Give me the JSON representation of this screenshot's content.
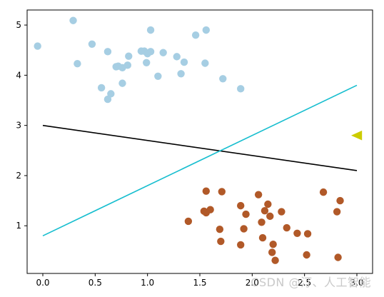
{
  "chart_data": {
    "type": "scatter",
    "xlim": [
      -0.15,
      3.15
    ],
    "ylim": [
      0.05,
      5.3
    ],
    "xticks": [
      "0.0",
      "0.5",
      "1.0",
      "1.5",
      "2.0",
      "2.5",
      "3.0"
    ],
    "yticks": [
      "1",
      "2",
      "3",
      "4",
      "5"
    ],
    "grid": false,
    "series": [
      {
        "kind": "points",
        "color": "#a6cee3",
        "points": [
          [
            -0.05,
            4.58
          ],
          [
            0.29,
            5.09
          ],
          [
            0.33,
            4.23
          ],
          [
            0.47,
            4.62
          ],
          [
            0.56,
            3.75
          ],
          [
            0.62,
            4.47
          ],
          [
            0.62,
            3.52
          ],
          [
            0.65,
            3.63
          ],
          [
            0.7,
            4.17
          ],
          [
            0.72,
            4.18
          ],
          [
            0.76,
            4.15
          ],
          [
            0.76,
            3.84
          ],
          [
            0.81,
            4.2
          ],
          [
            0.82,
            4.38
          ],
          [
            0.94,
            4.48
          ],
          [
            0.97,
            4.48
          ],
          [
            0.99,
            4.25
          ],
          [
            1.0,
            4.43
          ],
          [
            1.03,
            4.47
          ],
          [
            1.03,
            4.9
          ],
          [
            1.1,
            3.98
          ],
          [
            1.15,
            4.45
          ],
          [
            1.28,
            4.37
          ],
          [
            1.32,
            4.03
          ],
          [
            1.35,
            4.26
          ],
          [
            1.46,
            4.8
          ],
          [
            1.55,
            4.24
          ],
          [
            1.56,
            4.9
          ],
          [
            1.72,
            3.93
          ],
          [
            1.89,
            3.73
          ]
        ]
      },
      {
        "kind": "points",
        "color": "#b15928",
        "points": [
          [
            1.39,
            1.09
          ],
          [
            1.54,
            1.29
          ],
          [
            1.56,
            1.69
          ],
          [
            1.56,
            1.26
          ],
          [
            1.6,
            1.32
          ],
          [
            1.69,
            0.93
          ],
          [
            1.7,
            0.69
          ],
          [
            1.71,
            1.68
          ],
          [
            1.89,
            1.4
          ],
          [
            1.89,
            0.62
          ],
          [
            1.92,
            0.94
          ],
          [
            1.94,
            1.23
          ],
          [
            2.06,
            1.62
          ],
          [
            2.09,
            1.07
          ],
          [
            2.1,
            0.76
          ],
          [
            2.12,
            1.3
          ],
          [
            2.15,
            1.43
          ],
          [
            2.17,
            1.19
          ],
          [
            2.2,
            0.63
          ],
          [
            2.19,
            0.47
          ],
          [
            2.22,
            0.31
          ],
          [
            2.28,
            1.28
          ],
          [
            2.33,
            0.96
          ],
          [
            2.43,
            0.85
          ],
          [
            2.52,
            0.42
          ],
          [
            2.53,
            0.84
          ],
          [
            2.68,
            1.67
          ],
          [
            2.81,
            1.28
          ],
          [
            2.82,
            0.37
          ],
          [
            2.84,
            1.5
          ]
        ]
      },
      {
        "kind": "line",
        "color": "#000000",
        "x": [
          0,
          3
        ],
        "y": [
          3.0,
          2.1
        ]
      },
      {
        "kind": "line",
        "color": "#17becf",
        "x": [
          0,
          3
        ],
        "y": [
          0.8,
          3.8
        ]
      },
      {
        "kind": "marker",
        "marker": "triangle-left",
        "color": "#cccc00",
        "points": [
          [
            3.0,
            2.8
          ]
        ]
      }
    ]
  },
  "watermark": "CSDN @汀、人工智能"
}
